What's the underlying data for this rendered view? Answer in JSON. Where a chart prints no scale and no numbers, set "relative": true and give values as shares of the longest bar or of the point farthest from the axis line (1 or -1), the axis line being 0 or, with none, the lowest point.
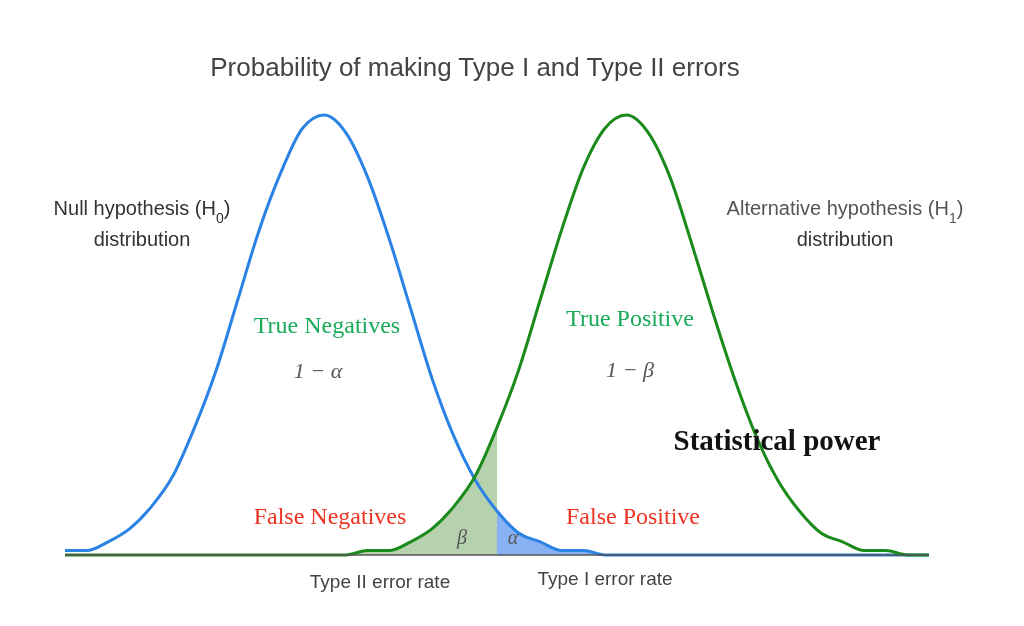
{
  "chart_data": {
    "type": "line",
    "relative": true,
    "title": "Probability of making Type I and Type II errors",
    "categories": [
      null,
      null,
      null,
      null,
      null,
      null,
      null,
      null,
      null,
      null,
      null,
      null,
      null,
      null,
      null,
      null,
      null,
      null,
      null,
      null,
      null,
      null,
      null,
      null,
      null,
      null,
      null,
      null,
      null,
      null,
      null,
      null,
      null,
      null,
      null,
      null,
      null,
      null,
      null,
      null,
      null
    ],
    "series": [
      {
        "type": "area",
        "color": "#a9c9a0",
        "values": [
          null,
          null,
          null,
          null,
          null,
          null,
          null,
          null,
          null,
          null,
          null,
          null,
          0,
          0,
          0.01,
          0.01,
          0.03,
          0.06,
          0.11,
          0.18,
          0.29,
          null,
          null,
          null,
          null,
          null,
          null,
          null,
          null,
          null,
          null,
          null,
          null,
          null,
          null,
          null,
          null,
          null,
          null,
          null,
          null
        ]
      },
      {
        "type": "area",
        "color": "#74a4f2",
        "values": [
          null,
          null,
          null,
          null,
          null,
          null,
          null,
          null,
          null,
          null,
          null,
          null,
          null,
          null,
          null,
          null,
          null,
          null,
          null,
          null,
          0.1,
          0.05,
          0.03,
          0.01,
          0.01,
          0,
          0,
          null,
          null,
          null,
          null,
          null,
          null,
          null,
          null,
          null,
          null,
          null,
          null,
          null,
          null
        ]
      },
      {
        "color": "#2a82e4",
        "values": [
          0.01,
          0.01,
          0.03,
          0.06,
          0.11,
          0.18,
          0.29,
          0.42,
          0.58,
          0.74,
          0.87,
          0.97,
          1,
          0.96,
          0.86,
          0.72,
          0.56,
          0.4,
          0.27,
          0.17,
          0.1,
          0.05,
          0.03,
          0.01,
          0.01,
          0,
          0,
          0,
          0,
          0,
          0,
          0,
          0,
          0,
          0,
          0,
          0,
          0,
          0,
          0,
          0
        ]
      },
      {
        "color": "#1a8a1a",
        "values": [
          0,
          0,
          0,
          0,
          0,
          0,
          0,
          0,
          0,
          0,
          0,
          0,
          0,
          0,
          0.01,
          0.01,
          0.03,
          0.06,
          0.11,
          0.18,
          0.29,
          0.42,
          0.58,
          0.74,
          0.88,
          0.97,
          1,
          0.96,
          0.86,
          0.71,
          0.55,
          0.4,
          0.27,
          0.17,
          0.1,
          0.05,
          0.03,
          0.01,
          0.01,
          0,
          0
        ]
      }
    ],
    "annotations": [
      "Null hypothesis (H$_{0}$)",
      "distribution",
      "Alternative hypothesis (H$_{1}$)",
      "distribution",
      "True Negatives",
      "1 − α",
      "True Positive",
      "1 − β",
      "Statistical power",
      "False Negatives",
      "False Positive",
      "β",
      "α",
      "Type II error rate",
      "Type I error rate"
    ]
  }
}
